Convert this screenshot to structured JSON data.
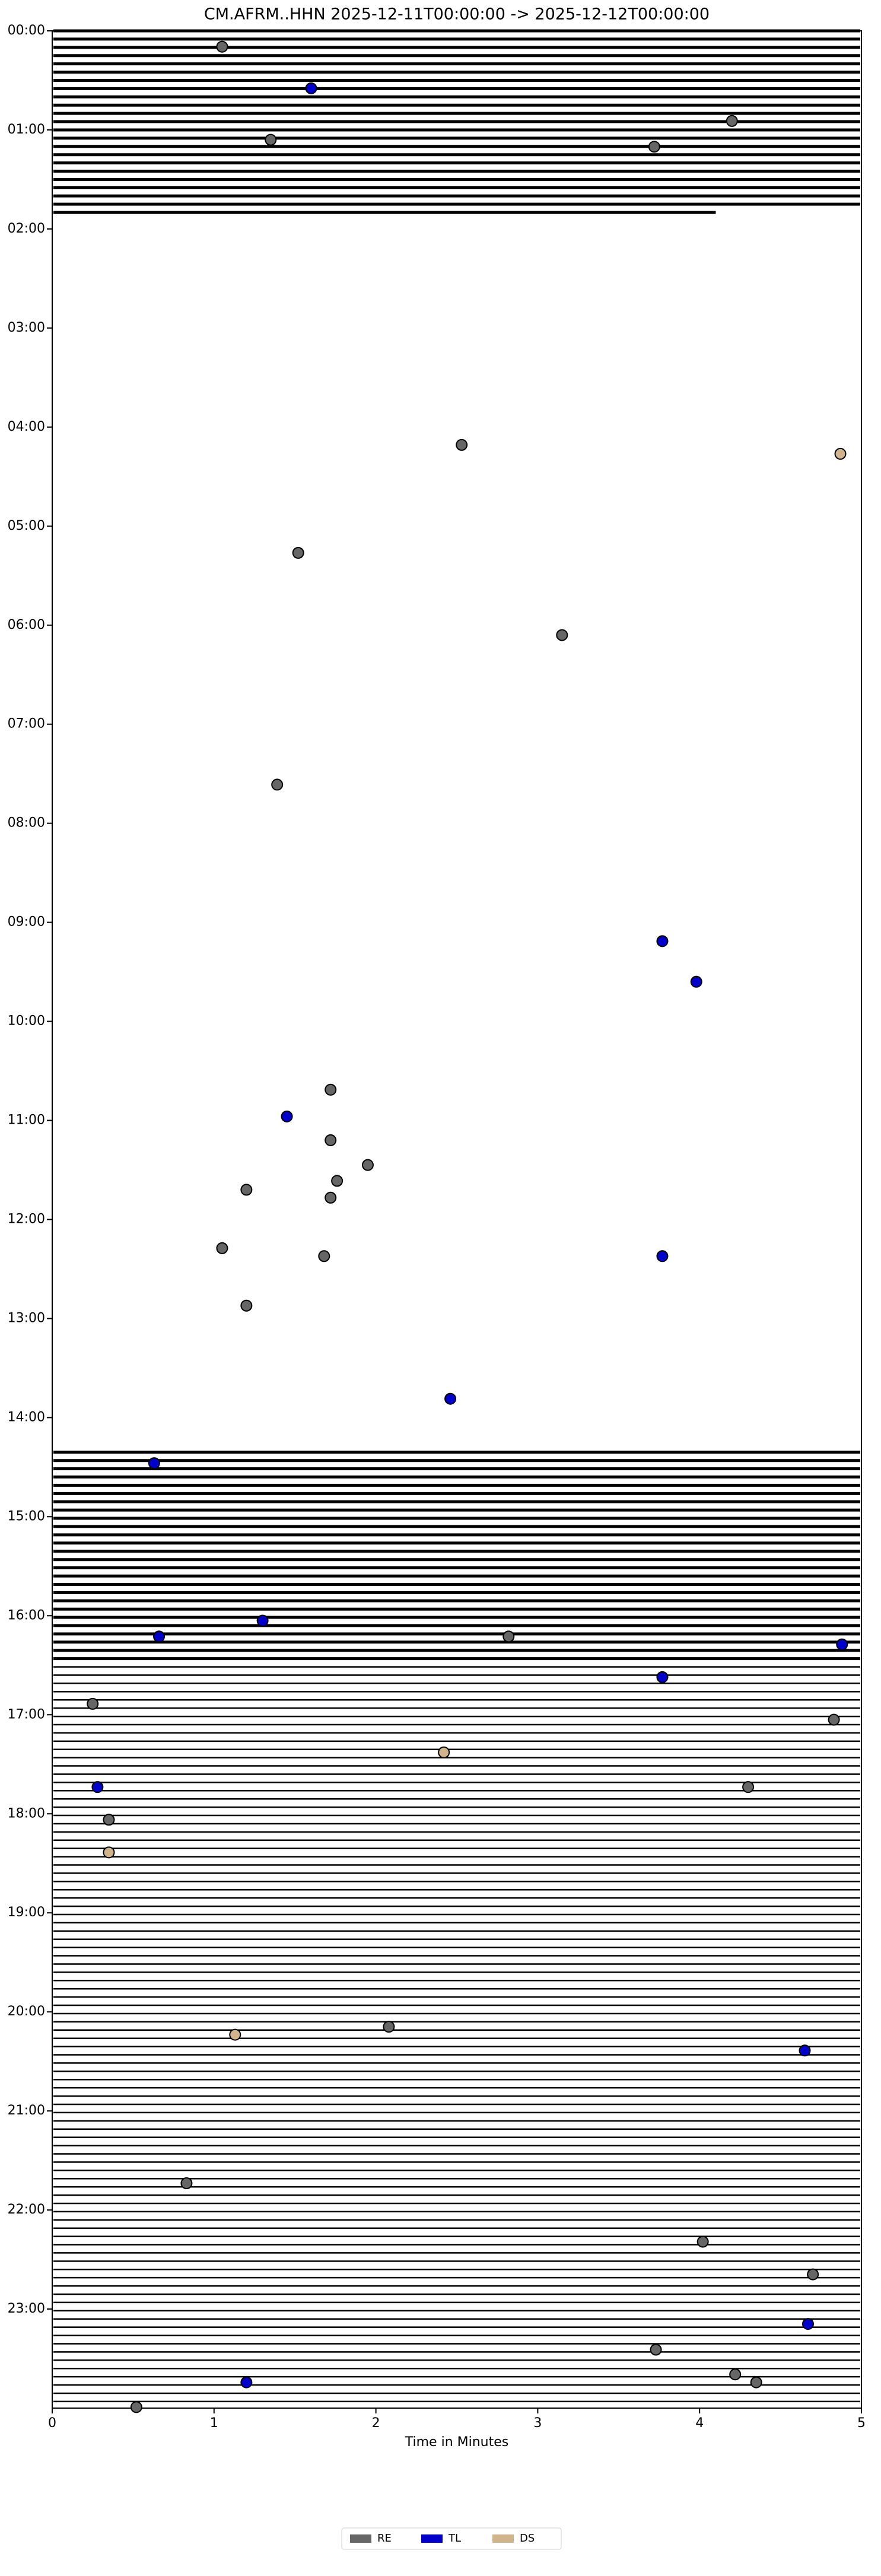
{
  "chart_data": {
    "type": "scatter",
    "title": "CM.AFRM..HHN  2025-12-11T00:00:00 -> 2025-12-12T00:00:00",
    "x_label": "Time in Minutes",
    "xlim": [
      0,
      5
    ],
    "xticks": [
      0,
      1,
      2,
      3,
      4,
      5
    ],
    "ylim": [
      0,
      24
    ],
    "y_inverted": true,
    "yticks": [
      {
        "value": 0,
        "label": "00:00"
      },
      {
        "value": 1,
        "label": "01:00"
      },
      {
        "value": 2,
        "label": "02:00"
      },
      {
        "value": 3,
        "label": "03:00"
      },
      {
        "value": 4,
        "label": "04:00"
      },
      {
        "value": 5,
        "label": "05:00"
      },
      {
        "value": 6,
        "label": "06:00"
      },
      {
        "value": 7,
        "label": "07:00"
      },
      {
        "value": 8,
        "label": "08:00"
      },
      {
        "value": 9,
        "label": "09:00"
      },
      {
        "value": 10,
        "label": "10:00"
      },
      {
        "value": 11,
        "label": "11:00"
      },
      {
        "value": 12,
        "label": "12:00"
      },
      {
        "value": 13,
        "label": "13:00"
      },
      {
        "value": 14,
        "label": "14:00"
      },
      {
        "value": 15,
        "label": "15:00"
      },
      {
        "value": 16,
        "label": "16:00"
      },
      {
        "value": 17,
        "label": "17:00"
      },
      {
        "value": 18,
        "label": "18:00"
      },
      {
        "value": 19,
        "label": "19:00"
      },
      {
        "value": 20,
        "label": "20:00"
      },
      {
        "value": 21,
        "label": "21:00"
      },
      {
        "value": 22,
        "label": "22:00"
      },
      {
        "value": 23,
        "label": "23:00"
      }
    ],
    "legend": "bottom",
    "series": [
      {
        "name": "RE",
        "color": "#666666",
        "x": [
          1.05,
          1.35,
          4.2,
          3.72,
          2.53,
          1.52,
          3.15,
          1.39,
          1.72,
          1.72,
          1.95,
          1.76,
          1.2,
          1.72,
          1.05,
          1.68,
          1.2,
          2.82,
          0.25,
          4.83,
          4.3,
          0.35,
          2.08,
          0.83,
          4.02,
          4.7,
          3.73,
          4.22,
          4.35,
          0.52
        ],
        "values": [
          0.16,
          1.1,
          0.91,
          1.17,
          4.18,
          5.27,
          6.1,
          7.61,
          10.69,
          11.2,
          11.45,
          11.61,
          11.7,
          11.78,
          12.29,
          12.37,
          12.87,
          16.21,
          16.89,
          17.05,
          17.73,
          18.06,
          20.15,
          21.73,
          22.32,
          22.65,
          23.41,
          23.66,
          23.74,
          23.99
        ]
      },
      {
        "name": "TL",
        "color": "#0000cc",
        "x": [
          1.6,
          3.77,
          3.98,
          1.45,
          3.77,
          2.46,
          0.63,
          1.3,
          0.66,
          4.88,
          3.77,
          0.28,
          4.65,
          4.67,
          1.2
        ],
        "values": [
          0.58,
          9.19,
          9.6,
          10.96,
          12.37,
          13.81,
          14.46,
          16.05,
          16.21,
          16.29,
          16.62,
          17.73,
          20.39,
          23.15,
          23.74
        ]
      },
      {
        "name": "DS",
        "color": "#d2b48c",
        "x": [
          4.87,
          2.42,
          0.35,
          1.13
        ],
        "values": [
          4.27,
          17.38,
          18.39,
          20.23
        ]
      }
    ]
  }
}
